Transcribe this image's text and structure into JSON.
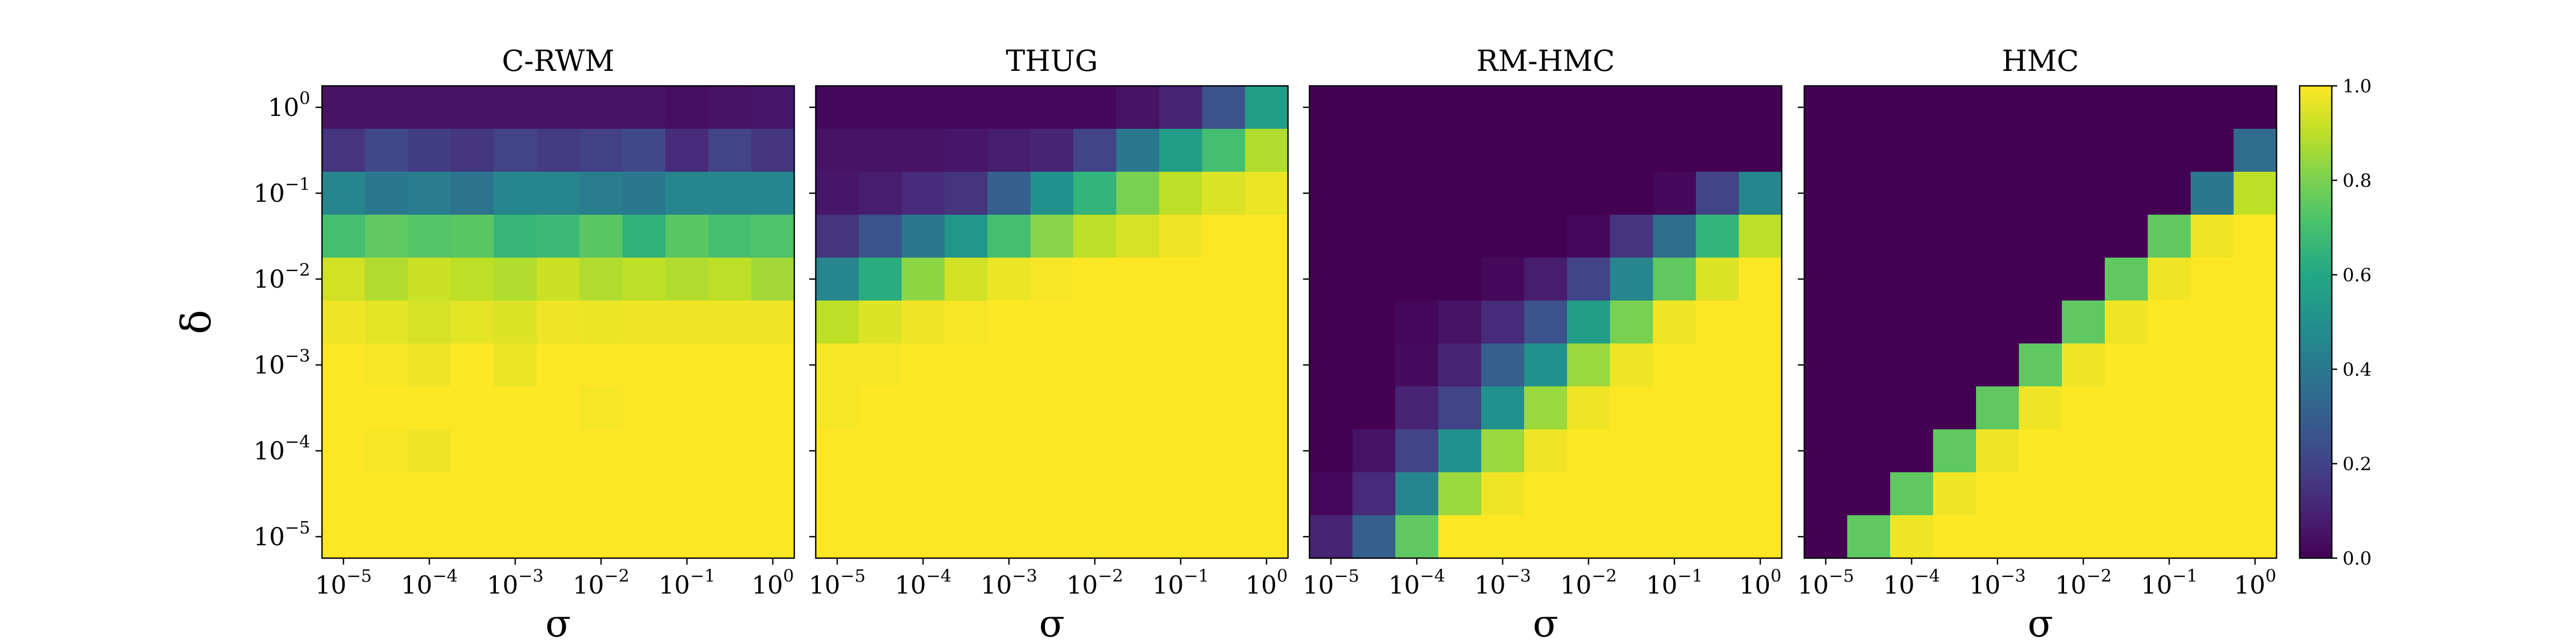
{
  "chart_data": {
    "type": "heatmap",
    "colormap": "viridis",
    "x_scale": "log",
    "y_scale": "log",
    "x_values": [
      1e-05,
      3.16e-05,
      0.0001,
      0.000316,
      0.001,
      0.00316,
      0.01,
      0.0316,
      0.1,
      0.316,
      1
    ],
    "y_values": [
      1,
      0.316,
      0.1,
      0.0316,
      0.01,
      0.00316,
      0.001,
      0.000316,
      0.0001,
      3.16e-05,
      1e-05
    ],
    "xlabel": "σ",
    "ylabel": "δ",
    "x_ticks": [
      {
        "base": "10",
        "exp": "−5",
        "value": 1e-05
      },
      {
        "base": "10",
        "exp": "−4",
        "value": 0.0001
      },
      {
        "base": "10",
        "exp": "−3",
        "value": 0.001
      },
      {
        "base": "10",
        "exp": "−2",
        "value": 0.01
      },
      {
        "base": "10",
        "exp": "−1",
        "value": 0.1
      },
      {
        "base": "10",
        "exp": "0",
        "value": 1
      }
    ],
    "y_ticks": [
      {
        "base": "10",
        "exp": "0",
        "value": 1
      },
      {
        "base": "10",
        "exp": "−1",
        "value": 0.1
      },
      {
        "base": "10",
        "exp": "−2",
        "value": 0.01
      },
      {
        "base": "10",
        "exp": "−3",
        "value": 0.001
      },
      {
        "base": "10",
        "exp": "−4",
        "value": 0.0001
      },
      {
        "base": "10",
        "exp": "−5",
        "value": 1e-05
      }
    ],
    "colorbar": {
      "min": 0.0,
      "max": 1.0,
      "ticks": [
        {
          "value": 0.0,
          "label": "0.0"
        },
        {
          "value": 0.2,
          "label": "0.2"
        },
        {
          "value": 0.4,
          "label": "0.4"
        },
        {
          "value": 0.6,
          "label": "0.6"
        },
        {
          "value": 0.8,
          "label": "0.8"
        },
        {
          "value": 1.0,
          "label": "1.0"
        }
      ]
    },
    "panels": [
      {
        "title": "C-RWM",
        "grid": [
          [
            0.05,
            0.05,
            0.05,
            0.05,
            0.05,
            0.05,
            0.05,
            0.05,
            0.04,
            0.05,
            0.06
          ],
          [
            0.15,
            0.22,
            0.18,
            0.16,
            0.2,
            0.17,
            0.19,
            0.22,
            0.12,
            0.2,
            0.16
          ],
          [
            0.45,
            0.4,
            0.42,
            0.38,
            0.45,
            0.45,
            0.42,
            0.4,
            0.45,
            0.45,
            0.46
          ],
          [
            0.7,
            0.75,
            0.73,
            0.74,
            0.66,
            0.68,
            0.74,
            0.64,
            0.74,
            0.7,
            0.72
          ],
          [
            0.93,
            0.88,
            0.92,
            0.9,
            0.88,
            0.92,
            0.88,
            0.9,
            0.88,
            0.9,
            0.86
          ],
          [
            0.98,
            0.96,
            0.94,
            0.96,
            0.95,
            0.98,
            0.97,
            0.98,
            0.98,
            0.98,
            0.98
          ],
          [
            1.0,
            0.99,
            0.98,
            1.0,
            0.97,
            1.0,
            1.0,
            1.0,
            1.0,
            1.0,
            1.0
          ],
          [
            1.0,
            1.0,
            1.0,
            1.0,
            1.0,
            1.0,
            0.99,
            1.0,
            1.0,
            1.0,
            1.0
          ],
          [
            1.0,
            0.99,
            0.98,
            1.0,
            1.0,
            1.0,
            1.0,
            1.0,
            1.0,
            1.0,
            1.0
          ],
          [
            1.0,
            1.0,
            1.0,
            1.0,
            1.0,
            1.0,
            1.0,
            1.0,
            1.0,
            1.0,
            1.0
          ],
          [
            1.0,
            1.0,
            1.0,
            1.0,
            1.0,
            1.0,
            1.0,
            1.0,
            1.0,
            1.0,
            1.0
          ]
        ]
      },
      {
        "title": "THUG",
        "grid": [
          [
            0.02,
            0.02,
            0.02,
            0.02,
            0.02,
            0.02,
            0.02,
            0.05,
            0.1,
            0.25,
            0.55
          ],
          [
            0.05,
            0.05,
            0.05,
            0.06,
            0.08,
            0.1,
            0.2,
            0.4,
            0.55,
            0.7,
            0.88
          ],
          [
            0.06,
            0.08,
            0.12,
            0.15,
            0.3,
            0.5,
            0.65,
            0.8,
            0.9,
            0.95,
            0.97
          ],
          [
            0.15,
            0.25,
            0.4,
            0.52,
            0.7,
            0.82,
            0.9,
            0.94,
            0.98,
            1.0,
            1.0
          ],
          [
            0.45,
            0.62,
            0.83,
            0.93,
            0.97,
            0.99,
            1.0,
            1.0,
            1.0,
            1.0,
            1.0
          ],
          [
            0.9,
            0.95,
            0.98,
            0.99,
            1.0,
            1.0,
            1.0,
            1.0,
            1.0,
            1.0,
            1.0
          ],
          [
            0.99,
            0.99,
            1.0,
            1.0,
            1.0,
            1.0,
            1.0,
            1.0,
            1.0,
            1.0,
            1.0
          ],
          [
            0.99,
            1.0,
            1.0,
            1.0,
            1.0,
            1.0,
            1.0,
            1.0,
            1.0,
            1.0,
            1.0
          ],
          [
            1.0,
            1.0,
            1.0,
            1.0,
            1.0,
            1.0,
            1.0,
            1.0,
            1.0,
            1.0,
            1.0
          ],
          [
            1.0,
            1.0,
            1.0,
            1.0,
            1.0,
            1.0,
            1.0,
            1.0,
            1.0,
            1.0,
            1.0
          ],
          [
            1.0,
            1.0,
            1.0,
            1.0,
            1.0,
            1.0,
            1.0,
            1.0,
            1.0,
            1.0,
            1.0
          ]
        ]
      },
      {
        "title": "RM-HMC",
        "grid": [
          [
            0.0,
            0.0,
            0.0,
            0.0,
            0.0,
            0.0,
            0.0,
            0.0,
            0.0,
            0.0,
            0.0
          ],
          [
            0.0,
            0.0,
            0.0,
            0.0,
            0.0,
            0.0,
            0.0,
            0.0,
            0.0,
            0.0,
            0.0
          ],
          [
            0.0,
            0.0,
            0.0,
            0.0,
            0.0,
            0.0,
            0.0,
            0.0,
            0.02,
            0.2,
            0.45
          ],
          [
            0.0,
            0.0,
            0.0,
            0.0,
            0.0,
            0.0,
            0.02,
            0.15,
            0.35,
            0.65,
            0.9
          ],
          [
            0.0,
            0.0,
            0.0,
            0.0,
            0.02,
            0.08,
            0.2,
            0.45,
            0.75,
            0.95,
            1.0
          ],
          [
            0.0,
            0.0,
            0.02,
            0.05,
            0.12,
            0.25,
            0.55,
            0.8,
            0.98,
            1.0,
            1.0
          ],
          [
            0.0,
            0.0,
            0.03,
            0.1,
            0.3,
            0.5,
            0.85,
            0.98,
            1.0,
            1.0,
            1.0
          ],
          [
            0.0,
            0.0,
            0.1,
            0.2,
            0.5,
            0.85,
            0.98,
            1.0,
            1.0,
            1.0,
            1.0
          ],
          [
            0.0,
            0.05,
            0.2,
            0.5,
            0.85,
            0.98,
            1.0,
            1.0,
            1.0,
            1.0,
            1.0
          ],
          [
            0.02,
            0.12,
            0.45,
            0.85,
            0.98,
            1.0,
            1.0,
            1.0,
            1.0,
            1.0,
            1.0
          ],
          [
            0.1,
            0.3,
            0.75,
            1.0,
            1.0,
            1.0,
            1.0,
            1.0,
            1.0,
            1.0,
            1.0
          ]
        ]
      },
      {
        "title": "HMC",
        "grid": [
          [
            0.0,
            0.0,
            0.0,
            0.0,
            0.0,
            0.0,
            0.0,
            0.0,
            0.0,
            0.0,
            0.0
          ],
          [
            0.0,
            0.0,
            0.0,
            0.0,
            0.0,
            0.0,
            0.0,
            0.0,
            0.0,
            0.0,
            0.35
          ],
          [
            0.0,
            0.0,
            0.0,
            0.0,
            0.0,
            0.0,
            0.0,
            0.0,
            0.0,
            0.4,
            0.9
          ],
          [
            0.0,
            0.0,
            0.0,
            0.0,
            0.0,
            0.0,
            0.0,
            0.0,
            0.75,
            0.98,
            1.0
          ],
          [
            0.0,
            0.0,
            0.0,
            0.0,
            0.0,
            0.0,
            0.0,
            0.75,
            0.98,
            1.0,
            1.0
          ],
          [
            0.0,
            0.0,
            0.0,
            0.0,
            0.0,
            0.0,
            0.75,
            0.98,
            1.0,
            1.0,
            1.0
          ],
          [
            0.0,
            0.0,
            0.0,
            0.0,
            0.0,
            0.75,
            0.98,
            1.0,
            1.0,
            1.0,
            1.0
          ],
          [
            0.0,
            0.0,
            0.0,
            0.0,
            0.75,
            0.98,
            1.0,
            1.0,
            1.0,
            1.0,
            1.0
          ],
          [
            0.0,
            0.0,
            0.0,
            0.75,
            0.98,
            1.0,
            1.0,
            1.0,
            1.0,
            1.0,
            1.0
          ],
          [
            0.0,
            0.0,
            0.75,
            0.98,
            1.0,
            1.0,
            1.0,
            1.0,
            1.0,
            1.0,
            1.0
          ],
          [
            0.0,
            0.75,
            0.98,
            1.0,
            1.0,
            1.0,
            1.0,
            1.0,
            1.0,
            1.0,
            1.0
          ]
        ]
      }
    ]
  }
}
